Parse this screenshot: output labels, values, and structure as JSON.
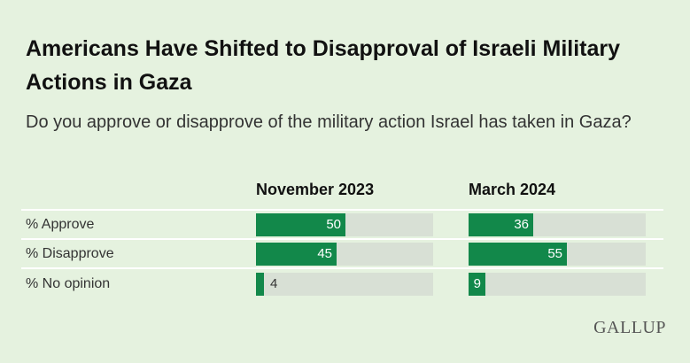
{
  "chart_data": {
    "type": "bar",
    "title": "Americans Have Shifted to Disapproval of Israeli Military Actions in Gaza",
    "subtitle": "Do you approve or disapprove of the military action Israel has taken in Gaza?",
    "categories": [
      "% Approve",
      "% Disapprove",
      "% No opinion"
    ],
    "series": [
      {
        "name": "November 2023",
        "values": [
          50,
          45,
          4
        ]
      },
      {
        "name": "March 2024",
        "values": [
          36,
          55,
          9
        ]
      }
    ],
    "ylim": [
      0,
      100
    ],
    "colors": {
      "bar": "#12884a",
      "track": "#d8e0d5",
      "background": "#e5f2df"
    }
  },
  "logo": "GALLUP"
}
